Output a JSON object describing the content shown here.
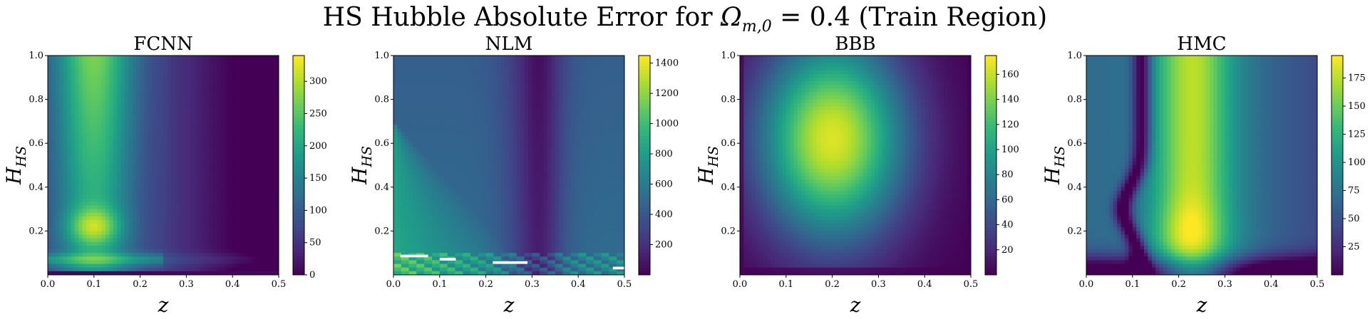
{
  "suptitle": {
    "prefix": "HS Hubble Absolute Error for ",
    "omega": "Ω",
    "omega_sub": "m,0",
    "suffix": " = 0.4 (Train Region)"
  },
  "colormap": "viridis",
  "colors": {
    "viridis": [
      "#440154",
      "#482878",
      "#3e4989",
      "#31688e",
      "#26828e",
      "#1f9e89",
      "#35b779",
      "#6ece58",
      "#b5de2b",
      "#fde725"
    ]
  },
  "chart_data": [
    {
      "type": "heatmap",
      "title": "FCNN",
      "xlabel": "z",
      "ylabel_main": "H",
      "ylabel_sub": "HS",
      "xlim": [
        0,
        0.5
      ],
      "ylim": [
        0,
        1.0
      ],
      "xticks": [
        "0.0",
        "0.1",
        "0.2",
        "0.3",
        "0.4",
        "0.5"
      ],
      "yticks": [
        "0.2",
        "0.4",
        "0.6",
        "0.8",
        "1.0"
      ],
      "colorbar": {
        "min": 0,
        "max": 340,
        "ticks": [
          "0",
          "50",
          "100",
          "150",
          "200",
          "250",
          "300"
        ]
      },
      "description": "vertical bright band near z=0.1, hot spot near z=0.1,H=0.22, streak at H=0.05-0.1"
    },
    {
      "type": "heatmap",
      "title": "NLM",
      "xlabel": "z",
      "ylabel_main": "H",
      "ylabel_sub": "HS",
      "xlim": [
        0,
        0.5
      ],
      "ylim": [
        0,
        1.0
      ],
      "xticks": [
        "0.0",
        "0.1",
        "0.2",
        "0.3",
        "0.4",
        "0.5"
      ],
      "yticks": [
        "0.2",
        "0.4",
        "0.6",
        "0.8",
        "1.0"
      ],
      "colorbar": {
        "min": 0,
        "max": 1450,
        "ticks": [
          "200",
          "400",
          "600",
          "800",
          "1000",
          "1200",
          "1400"
        ]
      },
      "description": "diagonal wedge from upper-left to z=0.3 at bottom, dark vertical band near z=0.3"
    },
    {
      "type": "heatmap",
      "title": "BBB",
      "xlabel": "z",
      "ylabel_main": "H",
      "ylabel_sub": "HS",
      "xlim": [
        0,
        0.5
      ],
      "ylim": [
        0,
        1.0
      ],
      "xticks": [
        "0.0",
        "0.1",
        "0.2",
        "0.3",
        "0.4",
        "0.5"
      ],
      "yticks": [
        "0.2",
        "0.4",
        "0.6",
        "0.8",
        "1.0"
      ],
      "colorbar": {
        "min": 0,
        "max": 175,
        "ticks": [
          "20",
          "40",
          "60",
          "80",
          "100",
          "120",
          "140",
          "160"
        ]
      },
      "description": "smooth blob peaking near z=0.2,H=0.62"
    },
    {
      "type": "heatmap",
      "title": "HMC",
      "xlabel": "z",
      "ylabel_main": "H",
      "ylabel_sub": "HS",
      "xlim": [
        0,
        0.5
      ],
      "ylim": [
        0,
        1.0
      ],
      "xticks": [
        "0.0",
        "0.1",
        "0.2",
        "0.3",
        "0.4",
        "0.5"
      ],
      "yticks": [
        "0.2",
        "0.4",
        "0.6",
        "0.8",
        "1.0"
      ],
      "colorbar": {
        "min": 0,
        "max": 195,
        "ticks": [
          "25",
          "50",
          "75",
          "100",
          "125",
          "150",
          "175"
        ]
      },
      "description": "curved dark line near z=0.12, bright vertical band near z=0.23 with peak near H=0.2"
    }
  ]
}
